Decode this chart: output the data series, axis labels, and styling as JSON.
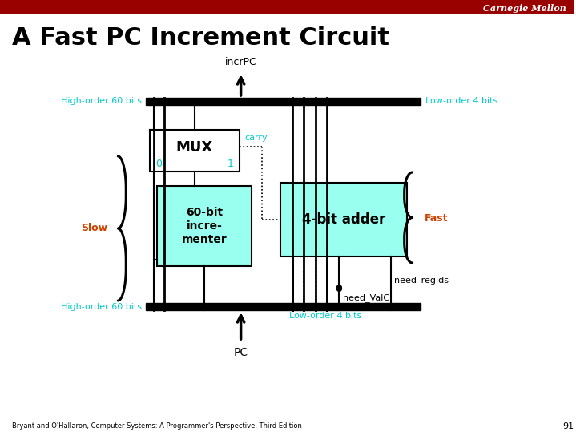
{
  "title": "A Fast PC Increment Circuit",
  "header_text": "Carnegie Mellon",
  "header_bg": "#990000",
  "header_text_color": "#ffffff",
  "title_color": "#000000",
  "title_fontsize": 22,
  "bg_color": "#ffffff",
  "footer_text": "Bryant and O'Hallaron, Computer Systems: A Programmer's Perspective, Third Edition",
  "footer_page": "91",
  "cyan_color": "#00CCCC",
  "orange_color": "#CC4400",
  "box_fill_cyan": "#99FFEE",
  "box_stroke": "#000000",
  "labels": {
    "incrPC": "incrPC",
    "high_order_top": "High-order 60 bits",
    "low_order_top": "Low-order 4 bits",
    "carry": "carry",
    "mux_label": "MUX",
    "mux_0": "0",
    "mux_1": "1",
    "incrementer": "60-bit\nincre-\nmenter",
    "adder": "4-bit adder",
    "slow": "Slow",
    "fast": "Fast",
    "high_order_bot": "High-order 60 bits",
    "low_order_bot": "Low-order 4 bits",
    "pc": "PC",
    "need_regids": "need_regids",
    "zero": "0",
    "need_valC": "need_ValC"
  }
}
